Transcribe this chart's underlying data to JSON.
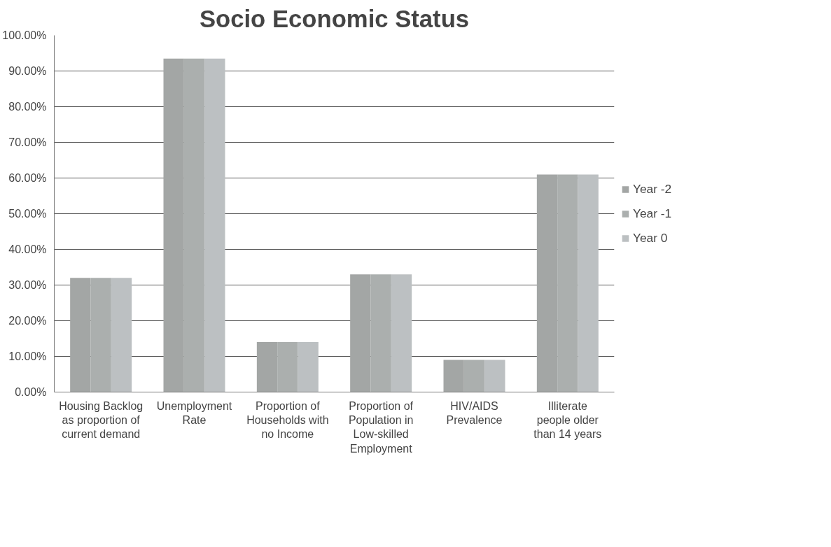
{
  "chart_data": {
    "type": "bar",
    "title": "Socio Economic Status",
    "categories": [
      "Housing Backlog as proportion of current demand",
      "Unemployment Rate",
      "Proportion of Households with no Income",
      "Proportion of Population in Low-skilled Employment",
      "HIV/AIDS Prevalence",
      "Illiterate people older than 14 years"
    ],
    "series": [
      {
        "name": "Year -2",
        "color": "#a3a6a5",
        "values": [
          32,
          93.5,
          14,
          33,
          9,
          61
        ]
      },
      {
        "name": "Year -1",
        "color": "#abafae",
        "values": [
          32,
          93.5,
          14,
          33,
          9,
          61
        ]
      },
      {
        "name": "Year 0",
        "color": "#bcc0c2",
        "values": [
          32,
          93.5,
          14,
          33,
          9,
          61
        ]
      }
    ],
    "ylim": [
      0,
      100
    ],
    "yticks": [
      {
        "value": 0,
        "label": "0.00%"
      },
      {
        "value": 10,
        "label": "10.00%"
      },
      {
        "value": 20,
        "label": "20.00%"
      },
      {
        "value": 30,
        "label": "30.00%"
      },
      {
        "value": 40,
        "label": "40.00%"
      },
      {
        "value": 50,
        "label": "50.00%"
      },
      {
        "value": 60,
        "label": "60.00%"
      },
      {
        "value": 70,
        "label": "70.00%"
      },
      {
        "value": 80,
        "label": "80.00%"
      },
      {
        "value": 90,
        "label": "90.00%"
      },
      {
        "value": 100,
        "label": "100.00%"
      }
    ],
    "grid": "y",
    "legend": "right"
  }
}
